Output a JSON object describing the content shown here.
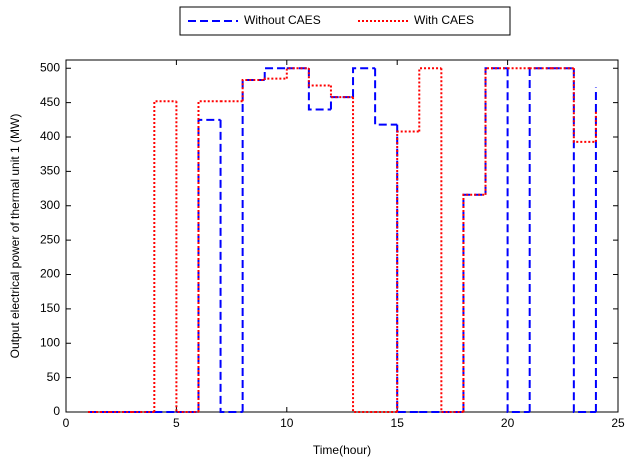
{
  "chart_data": {
    "type": "line",
    "step": "post",
    "x_label": "Time(hour)",
    "y_label": "Output electrical power of thermal unit 1 (MW)",
    "x": [
      1,
      2,
      3,
      4,
      5,
      6,
      7,
      8,
      9,
      10,
      11,
      12,
      13,
      14,
      15,
      16,
      17,
      18,
      19,
      20,
      21,
      22,
      23,
      24
    ],
    "series": [
      {
        "name": "Without CAES",
        "color": "#0000ff",
        "dash": "8,4",
        "values": [
          0,
          0,
          0,
          0,
          0,
          425,
          0,
          483,
          500,
          500,
          440,
          458,
          500,
          418,
          0,
          0,
          0,
          316,
          500,
          0,
          500,
          500,
          0,
          472
        ]
      },
      {
        "name": "With CAES",
        "color": "#ff0000",
        "dash": "2,2",
        "values": [
          0,
          0,
          0,
          452,
          0,
          452,
          452,
          483,
          485,
          500,
          475,
          458,
          0,
          0,
          408,
          500,
          0,
          316,
          500,
          500,
          500,
          500,
          393,
          437
        ]
      }
    ],
    "xlim": [
      0,
      25
    ],
    "xticks": [
      0,
      5,
      10,
      15,
      20,
      25
    ],
    "ylim": [
      0,
      512
    ],
    "yticks": [
      0,
      50,
      100,
      150,
      200,
      250,
      300,
      350,
      400,
      450,
      500
    ],
    "grid": false,
    "legend": "top"
  }
}
